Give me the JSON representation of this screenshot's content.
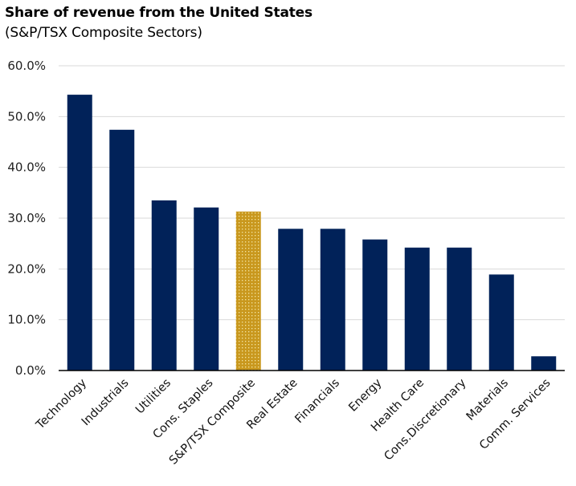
{
  "chart_data": {
    "type": "bar",
    "title": "Share of revenue from the United States",
    "subtitle": "(S&P/TSX Composite Sectors)",
    "xlabel": "",
    "ylabel": "",
    "ylim": [
      0,
      60
    ],
    "yticks": [
      0,
      10,
      20,
      30,
      40,
      50,
      60
    ],
    "ytick_labels": [
      "0.0%",
      "10.0%",
      "20.0%",
      "30.0%",
      "40.0%",
      "50.0%",
      "60.0%"
    ],
    "grid": true,
    "legend": "none",
    "categories": [
      "Technology",
      "Industrials",
      "Utilities",
      "Cons. Staples",
      "S&P/TSX Composite",
      "Real Estate",
      "Financials",
      "Energy",
      "Health Care",
      "Cons.Discretionary",
      "Materials",
      "Comm. Services"
    ],
    "values": [
      54.3,
      47.4,
      33.5,
      32.1,
      31.3,
      27.9,
      27.9,
      25.8,
      24.2,
      24.2,
      18.9,
      2.8
    ],
    "highlight_category": "S&P/TSX Composite",
    "colors": {
      "bar": "#012259",
      "highlight": "#C9981E",
      "highlight_dots": "#F3E6A6",
      "grid": "#D9D9D9",
      "axis": "#000000"
    }
  }
}
